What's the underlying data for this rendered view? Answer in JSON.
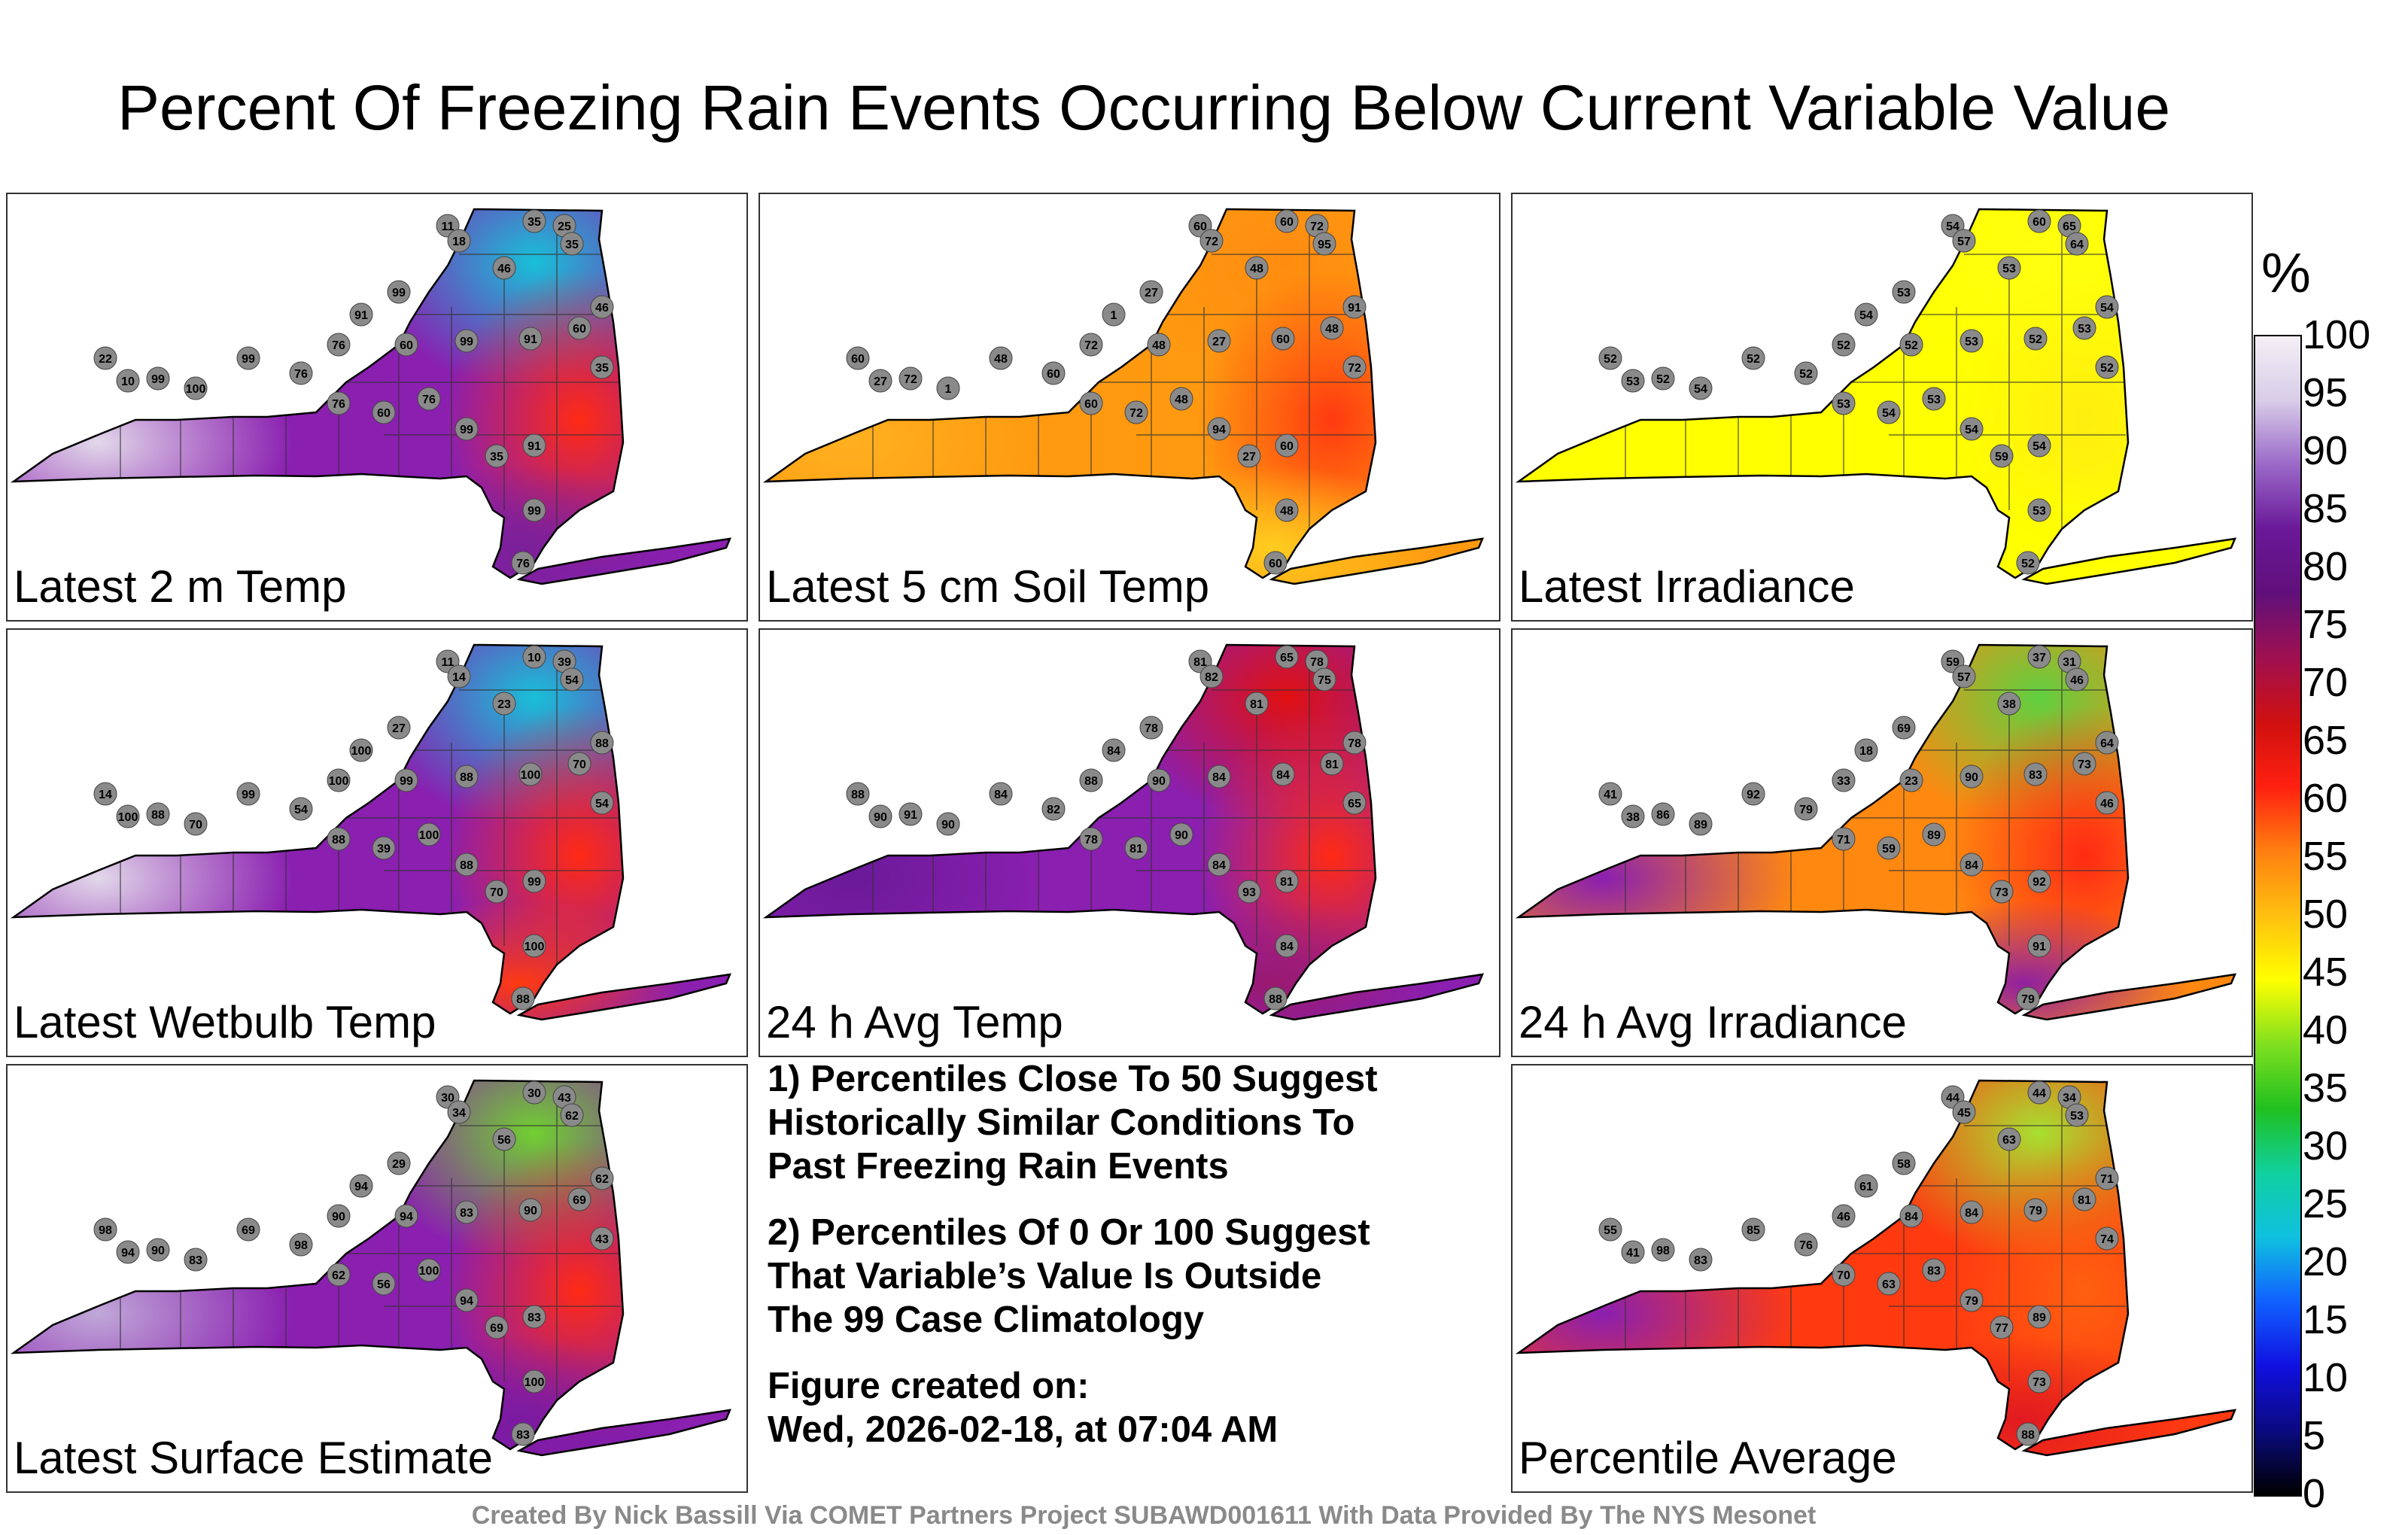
{
  "title": "Percent Of Freezing Rain Events Occurring Below Current Variable Value",
  "panels": [
    {
      "id": "p1",
      "label": "Latest 2 m Temp",
      "fill": {
        "base": "#8a1fb0",
        "west": "#e2d8ea",
        "north": "#18c0d8",
        "east": "#ff2a14",
        "south": "#7a2098"
      },
      "markers": [
        {
          "v": "11"
        },
        {
          "v": "18"
        },
        {
          "v": "35"
        },
        {
          "v": "25"
        },
        {
          "v": "35"
        },
        {
          "v": "46"
        },
        {
          "v": "99"
        },
        {
          "v": "91"
        },
        {
          "v": "76"
        },
        {
          "v": "60"
        },
        {
          "v": "99"
        },
        {
          "v": "91"
        },
        {
          "v": "60"
        },
        {
          "v": "46"
        },
        {
          "v": "35"
        },
        {
          "v": "22"
        },
        {
          "v": "10"
        },
        {
          "v": "99"
        },
        {
          "v": "100"
        },
        {
          "v": "99"
        },
        {
          "v": "76"
        },
        {
          "v": "76"
        },
        {
          "v": "60"
        },
        {
          "v": "76"
        },
        {
          "v": "99"
        },
        {
          "v": "35"
        },
        {
          "v": "91"
        },
        {
          "v": "99"
        },
        {
          "v": "76"
        }
      ]
    },
    {
      "id": "p2",
      "label": "Latest 5 cm Soil Temp",
      "fill": {
        "base": "#ff9a10",
        "west": "#ffb020",
        "north": "#ff8c10",
        "east": "#ff3a10",
        "south": "#ffcc20"
      },
      "markers": [
        {
          "v": "60"
        },
        {
          "v": "72"
        },
        {
          "v": "60"
        },
        {
          "v": "72"
        },
        {
          "v": "95"
        },
        {
          "v": "48"
        },
        {
          "v": "27"
        },
        {
          "v": "1"
        },
        {
          "v": "72"
        },
        {
          "v": "48"
        },
        {
          "v": "27"
        },
        {
          "v": "60"
        },
        {
          "v": "48"
        },
        {
          "v": "91"
        },
        {
          "v": "72"
        },
        {
          "v": "60"
        },
        {
          "v": "27"
        },
        {
          "v": "72"
        },
        {
          "v": "1"
        },
        {
          "v": "48"
        },
        {
          "v": "60"
        },
        {
          "v": "60"
        },
        {
          "v": "72"
        },
        {
          "v": "48"
        },
        {
          "v": "94"
        },
        {
          "v": "27"
        },
        {
          "v": "60"
        },
        {
          "v": "48"
        },
        {
          "v": "60"
        }
      ]
    },
    {
      "id": "p3",
      "label": "Latest Irradiance",
      "fill": {
        "base": "#ffff00",
        "west": "#ffff00",
        "north": "#ffff10",
        "east": "#ffee10",
        "south": "#ffff00"
      },
      "markers": [
        {
          "v": "54"
        },
        {
          "v": "57"
        },
        {
          "v": "60"
        },
        {
          "v": "65"
        },
        {
          "v": "64"
        },
        {
          "v": "53"
        },
        {
          "v": "53"
        },
        {
          "v": "54"
        },
        {
          "v": "52"
        },
        {
          "v": "52"
        },
        {
          "v": "53"
        },
        {
          "v": "52"
        },
        {
          "v": "53"
        },
        {
          "v": "54"
        },
        {
          "v": "52"
        },
        {
          "v": "52"
        },
        {
          "v": "53"
        },
        {
          "v": "52"
        },
        {
          "v": "54"
        },
        {
          "v": "52"
        },
        {
          "v": "52"
        },
        {
          "v": "53"
        },
        {
          "v": "54"
        },
        {
          "v": "53"
        },
        {
          "v": "54"
        },
        {
          "v": "59"
        },
        {
          "v": "54"
        },
        {
          "v": "53"
        },
        {
          "v": "52"
        }
      ]
    },
    {
      "id": "p4",
      "label": "Latest Wetbulb Temp",
      "fill": {
        "base": "#8a1fb0",
        "west": "#e2d8ea",
        "north": "#18c0d8",
        "east": "#ff2a14",
        "south": "#ff3a10"
      },
      "markers": [
        {
          "v": "11"
        },
        {
          "v": "14"
        },
        {
          "v": "10"
        },
        {
          "v": "39"
        },
        {
          "v": "54"
        },
        {
          "v": "23"
        },
        {
          "v": "27"
        },
        {
          "v": "100"
        },
        {
          "v": "100"
        },
        {
          "v": "99"
        },
        {
          "v": "88"
        },
        {
          "v": "100"
        },
        {
          "v": "70"
        },
        {
          "v": "88"
        },
        {
          "v": "54"
        },
        {
          "v": "14"
        },
        {
          "v": "100"
        },
        {
          "v": "88"
        },
        {
          "v": "70"
        },
        {
          "v": "99"
        },
        {
          "v": "54"
        },
        {
          "v": "88"
        },
        {
          "v": "39"
        },
        {
          "v": "100"
        },
        {
          "v": "88"
        },
        {
          "v": "70"
        },
        {
          "v": "99"
        },
        {
          "v": "100"
        },
        {
          "v": "88"
        }
      ]
    },
    {
      "id": "p5",
      "label": "24 h Avg Temp",
      "fill": {
        "base": "#8a1fb0",
        "west": "#6a1a98",
        "north": "#e01010",
        "east": "#ff2a14",
        "south": "#9a1a70"
      },
      "markers": [
        {
          "v": "81"
        },
        {
          "v": "82"
        },
        {
          "v": "65"
        },
        {
          "v": "78"
        },
        {
          "v": "75"
        },
        {
          "v": "81"
        },
        {
          "v": "78"
        },
        {
          "v": "84"
        },
        {
          "v": "88"
        },
        {
          "v": "90"
        },
        {
          "v": "84"
        },
        {
          "v": "84"
        },
        {
          "v": "81"
        },
        {
          "v": "78"
        },
        {
          "v": "65"
        },
        {
          "v": "88"
        },
        {
          "v": "90"
        },
        {
          "v": "91"
        },
        {
          "v": "90"
        },
        {
          "v": "84"
        },
        {
          "v": "82"
        },
        {
          "v": "78"
        },
        {
          "v": "81"
        },
        {
          "v": "90"
        },
        {
          "v": "84"
        },
        {
          "v": "93"
        },
        {
          "v": "81"
        },
        {
          "v": "84"
        },
        {
          "v": "88"
        }
      ]
    },
    {
      "id": "p6",
      "label": "24 h Avg Irradiance",
      "fill": {
        "base": "#ff8810",
        "west": "#8a1fb0",
        "north": "#60d040",
        "east": "#ff2a14",
        "south": "#9020a0"
      },
      "markers": [
        {
          "v": "59"
        },
        {
          "v": "57"
        },
        {
          "v": "37"
        },
        {
          "v": "31"
        },
        {
          "v": "46"
        },
        {
          "v": "38"
        },
        {
          "v": "69"
        },
        {
          "v": "18"
        },
        {
          "v": "33"
        },
        {
          "v": "23"
        },
        {
          "v": "90"
        },
        {
          "v": "83"
        },
        {
          "v": "73"
        },
        {
          "v": "64"
        },
        {
          "v": "46"
        },
        {
          "v": "41"
        },
        {
          "v": "38"
        },
        {
          "v": "86"
        },
        {
          "v": "89"
        },
        {
          "v": "92"
        },
        {
          "v": "79"
        },
        {
          "v": "71"
        },
        {
          "v": "59"
        },
        {
          "v": "89"
        },
        {
          "v": "84"
        },
        {
          "v": "73"
        },
        {
          "v": "92"
        },
        {
          "v": "91"
        },
        {
          "v": "79"
        }
      ]
    },
    {
      "id": "p7",
      "label": "Latest Surface Estimate",
      "fill": {
        "base": "#8a1fb0",
        "west": "#c0a8d8",
        "north": "#70d030",
        "east": "#ff2a14",
        "south": "#7a1aa0"
      },
      "markers": [
        {
          "v": "30"
        },
        {
          "v": "34"
        },
        {
          "v": "30"
        },
        {
          "v": "43"
        },
        {
          "v": "62"
        },
        {
          "v": "56"
        },
        {
          "v": "29"
        },
        {
          "v": "94"
        },
        {
          "v": "90"
        },
        {
          "v": "94"
        },
        {
          "v": "83"
        },
        {
          "v": "90"
        },
        {
          "v": "69"
        },
        {
          "v": "62"
        },
        {
          "v": "43"
        },
        {
          "v": "98"
        },
        {
          "v": "94"
        },
        {
          "v": "90"
        },
        {
          "v": "83"
        },
        {
          "v": "69"
        },
        {
          "v": "98"
        },
        {
          "v": "62"
        },
        {
          "v": "56"
        },
        {
          "v": "100"
        },
        {
          "v": "94"
        },
        {
          "v": "69"
        },
        {
          "v": "83"
        },
        {
          "v": "100"
        },
        {
          "v": "83"
        }
      ]
    },
    {
      "id": "p8",
      "label": "Percentile Average",
      "fill": {
        "base": "#ff3a10",
        "west": "#8a1fb0",
        "north": "#a8e030",
        "east": "#ff6010",
        "south": "#e01a20"
      },
      "markers": [
        {
          "v": "44"
        },
        {
          "v": "45"
        },
        {
          "v": "44"
        },
        {
          "v": "34"
        },
        {
          "v": "53"
        },
        {
          "v": "63"
        },
        {
          "v": "58"
        },
        {
          "v": "61"
        },
        {
          "v": "46"
        },
        {
          "v": "84"
        },
        {
          "v": "84"
        },
        {
          "v": "79"
        },
        {
          "v": "81"
        },
        {
          "v": "71"
        },
        {
          "v": "74"
        },
        {
          "v": "55"
        },
        {
          "v": "41"
        },
        {
          "v": "98"
        },
        {
          "v": "83"
        },
        {
          "v": "85"
        },
        {
          "v": "76"
        },
        {
          "v": "70"
        },
        {
          "v": "63"
        },
        {
          "v": "83"
        },
        {
          "v": "79"
        },
        {
          "v": "77"
        },
        {
          "v": "89"
        },
        {
          "v": "73"
        },
        {
          "v": "88"
        }
      ]
    }
  ],
  "notes": [
    "1) Percentiles Close To 50 Suggest\nHistorically Similar Conditions To\nPast Freezing Rain Events",
    "2) Percentiles Of 0 Or 100 Suggest\nThat Variable’s Value Is Outside\nThe 99 Case Climatology",
    "Figure created on:\nWed, 2026-02-18, at 07:04 AM"
  ],
  "colorbar": {
    "unit": "%",
    "ticks": [
      "100",
      "95",
      "90",
      "85",
      "80",
      "75",
      "70",
      "65",
      "60",
      "55",
      "50",
      "45",
      "40",
      "35",
      "30",
      "25",
      "20",
      "15",
      "10",
      "5",
      "0"
    ],
    "stops": [
      "#000000",
      "#0a0a80",
      "#1010e0",
      "#1060ff",
      "#10c0e0",
      "#10d0a0",
      "#20c020",
      "#80e020",
      "#ffff00",
      "#ffc010",
      "#ff8010",
      "#ff2010",
      "#d01010",
      "#a01050",
      "#60107a",
      "#6a1898",
      "#9a68c8",
      "#d8cce8",
      "#f4f0f6"
    ]
  },
  "footer": "Created By Nick Bassill Via COMET Partners Project SUBAWD001611 With Data Provided By The NYS Mesonet"
}
